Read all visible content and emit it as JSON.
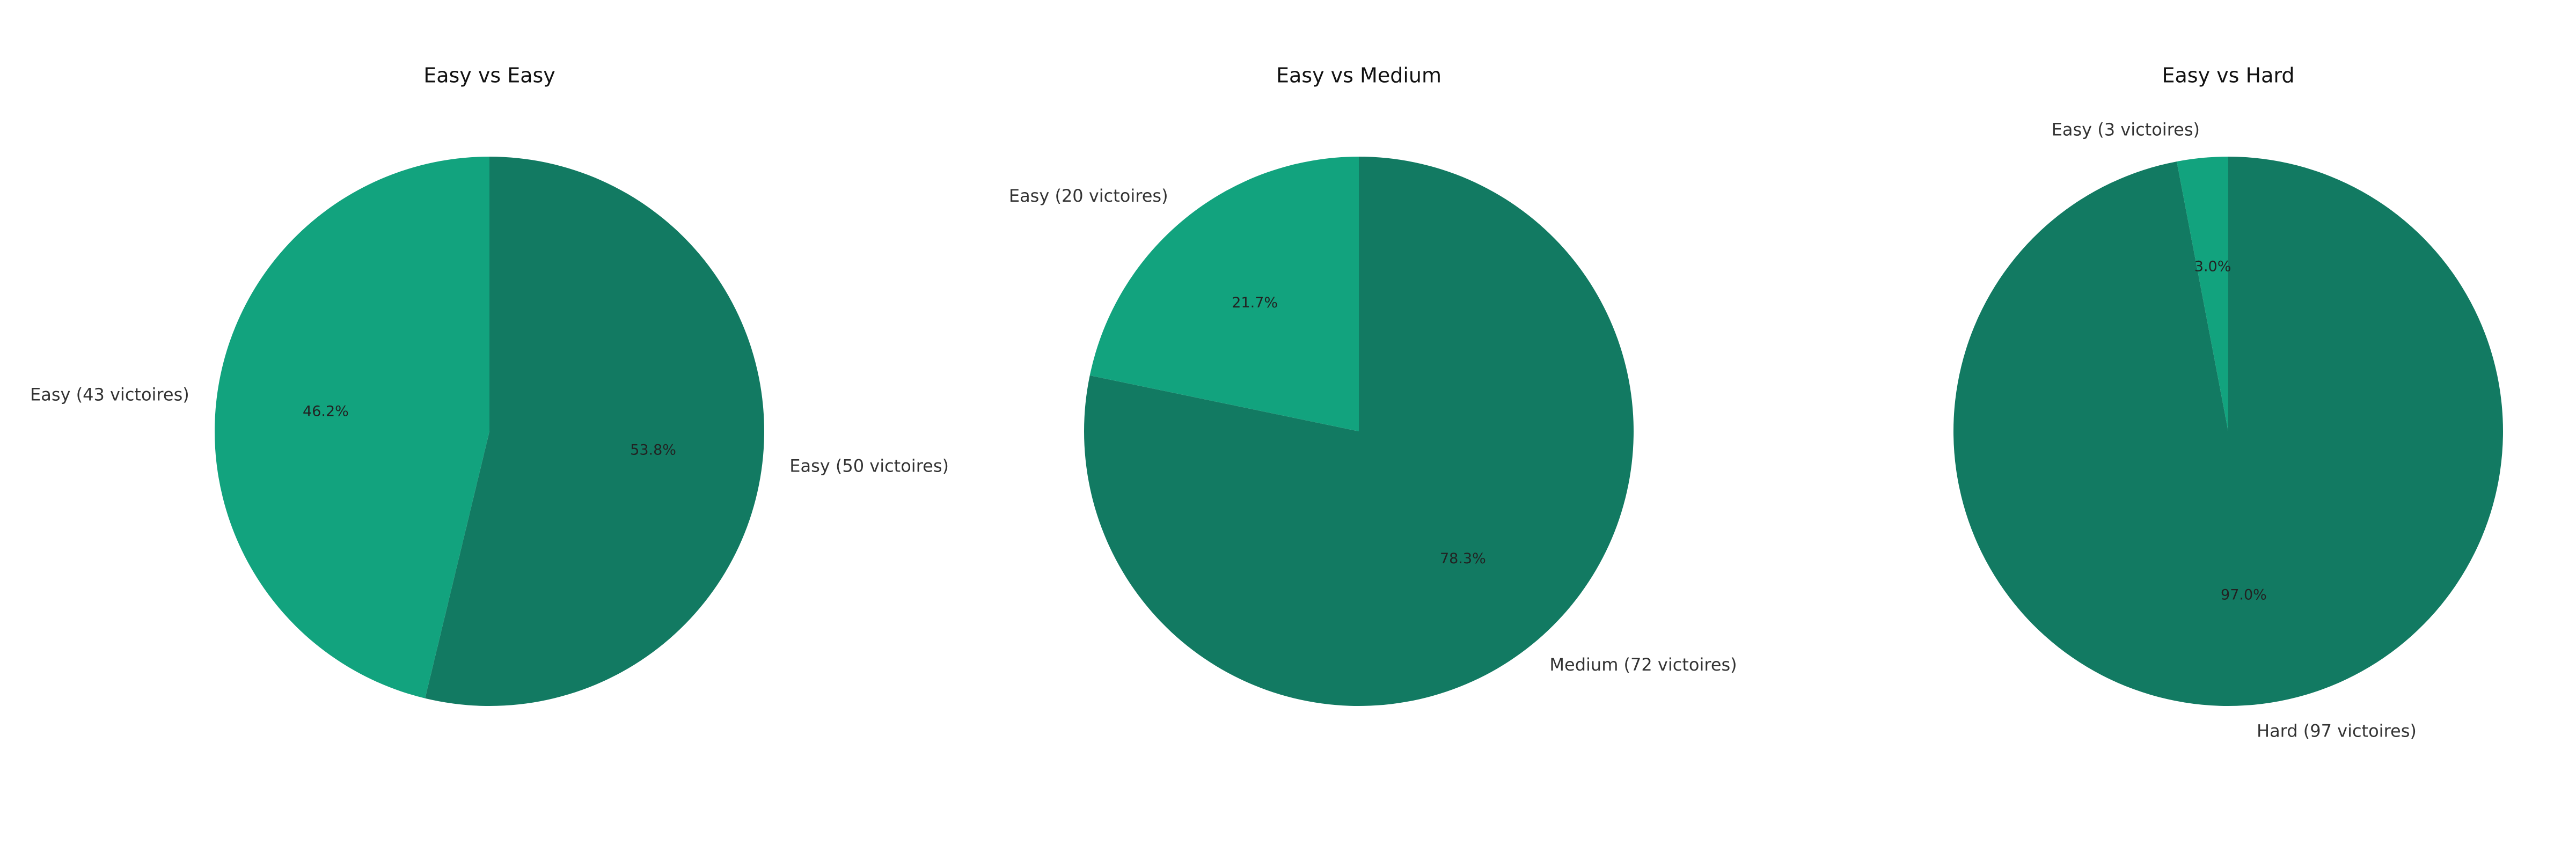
{
  "colors": {
    "primary": "#127A62",
    "secondary": "#12A37E"
  },
  "chart_data": [
    {
      "type": "pie",
      "title": "Easy vs Easy",
      "labels": [
        "Easy (50 victoires)",
        "Easy (43 victoires)"
      ],
      "values": [
        50,
        43
      ],
      "percent_labels": [
        "53.8%",
        "46.2%"
      ]
    },
    {
      "type": "pie",
      "title": "Easy vs Medium",
      "labels": [
        "Medium (72 victoires)",
        "Easy (20 victoires)"
      ],
      "values": [
        72,
        20
      ],
      "percent_labels": [
        "78.3%",
        "21.7%"
      ]
    },
    {
      "type": "pie",
      "title": "Easy vs Hard",
      "labels": [
        "Hard (97 victoires)",
        "Easy (3 victoires)"
      ],
      "values": [
        97,
        3
      ],
      "percent_labels": [
        "97.0%",
        "3.0%"
      ]
    }
  ]
}
